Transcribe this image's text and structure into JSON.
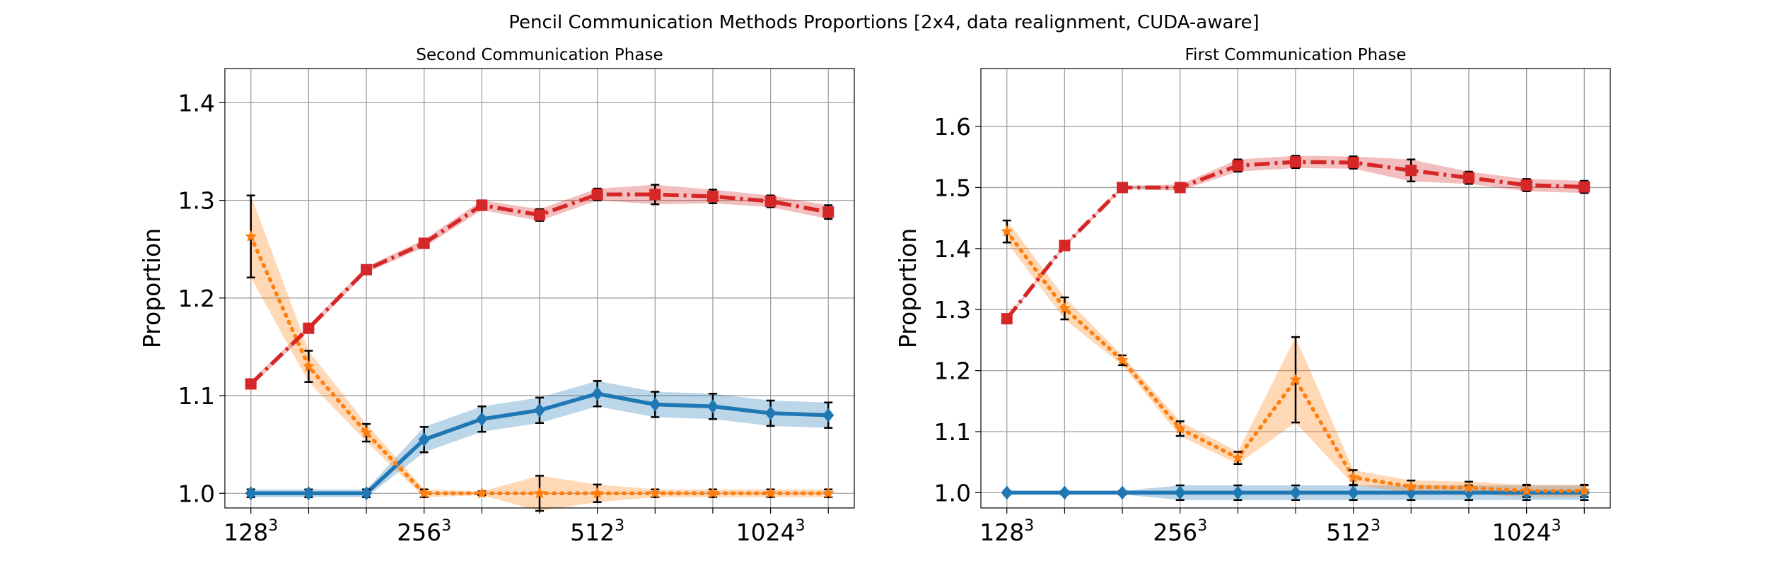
{
  "figure": {
    "suptitle": "Pencil Communication Methods Proportions [2x4, data realignment, CUDA-aware]"
  },
  "chart_data": [
    {
      "type": "line",
      "title": "Second Communication Phase",
      "xlabel": "",
      "ylabel": "Proportion",
      "ylim": [
        0.985,
        1.435
      ],
      "yticks": [
        1.0,
        1.1,
        1.2,
        1.3,
        1.4
      ],
      "xlim": [
        0.55,
        11.45
      ],
      "xtick_positions": [
        1,
        2,
        3,
        4,
        5,
        6,
        7,
        8,
        9,
        10,
        11
      ],
      "xtick_labels": [
        {
          "pos": 1,
          "base": "128",
          "exp": "3"
        },
        {
          "pos": 4,
          "base": "256",
          "exp": "3"
        },
        {
          "pos": 7,
          "base": "512",
          "exp": "3"
        },
        {
          "pos": 10,
          "base": "1024",
          "exp": "3"
        }
      ],
      "grid": true,
      "x": [
        1,
        2,
        3,
        4,
        5,
        6,
        7,
        8,
        9,
        10,
        11
      ],
      "series": [
        {
          "color": "#1f77b4",
          "linestyle": "solid",
          "marker": "diamond",
          "values": [
            1.0,
            1.0,
            1.0,
            1.055,
            1.076,
            1.085,
            1.102,
            1.091,
            1.089,
            1.082,
            1.08
          ],
          "errors": [
            0.004,
            0.004,
            0.004,
            0.013,
            0.013,
            0.013,
            0.013,
            0.013,
            0.013,
            0.013,
            0.013
          ]
        },
        {
          "color": "#ff7f0e",
          "linestyle": "dotted",
          "marker": "star",
          "values": [
            1.263,
            1.13,
            1.062,
            1.0,
            1.0,
            1.0,
            1.0,
            1.0,
            1.0,
            1.0,
            1.0
          ],
          "errors": [
            0.042,
            0.016,
            0.009,
            0.004,
            0.002,
            0.018,
            0.009,
            0.004,
            0.004,
            0.004,
            0.004
          ]
        },
        {
          "color": "#d62728",
          "linestyle": "dashdot",
          "marker": "square",
          "values": [
            1.112,
            1.169,
            1.229,
            1.256,
            1.295,
            1.285,
            1.306,
            1.306,
            1.304,
            1.299,
            1.288
          ],
          "errors": [
            0.003,
            0.003,
            0.003,
            0.004,
            0.005,
            0.006,
            0.006,
            0.01,
            0.007,
            0.006,
            0.007
          ]
        }
      ]
    },
    {
      "type": "line",
      "title": "First Communication Phase",
      "xlabel": "",
      "ylabel": "Proportion",
      "ylim": [
        0.975,
        1.695
      ],
      "yticks": [
        1.0,
        1.1,
        1.2,
        1.3,
        1.4,
        1.5,
        1.6
      ],
      "xlim": [
        0.55,
        11.45
      ],
      "xtick_positions": [
        1,
        2,
        3,
        4,
        5,
        6,
        7,
        8,
        9,
        10,
        11
      ],
      "xtick_labels": [
        {
          "pos": 1,
          "base": "128",
          "exp": "3"
        },
        {
          "pos": 4,
          "base": "256",
          "exp": "3"
        },
        {
          "pos": 7,
          "base": "512",
          "exp": "3"
        },
        {
          "pos": 10,
          "base": "1024",
          "exp": "3"
        }
      ],
      "grid": true,
      "x": [
        1,
        2,
        3,
        4,
        5,
        6,
        7,
        8,
        9,
        10,
        11
      ],
      "series": [
        {
          "color": "#1f77b4",
          "linestyle": "solid",
          "marker": "diamond",
          "values": [
            1.0,
            1.0,
            1.0,
            1.0,
            1.0,
            1.0,
            1.0,
            1.0,
            1.0,
            1.0,
            1.0
          ],
          "errors": [
            0.003,
            0.003,
            0.003,
            0.012,
            0.012,
            0.012,
            0.012,
            0.012,
            0.012,
            0.012,
            0.012
          ]
        },
        {
          "color": "#ff7f0e",
          "linestyle": "dotted",
          "marker": "star",
          "values": [
            1.428,
            1.302,
            1.217,
            1.105,
            1.057,
            1.185,
            1.025,
            1.01,
            1.008,
            1.003,
            1.003
          ],
          "errors": [
            0.018,
            0.018,
            0.008,
            0.012,
            0.01,
            0.07,
            0.012,
            0.01,
            0.01,
            0.01,
            0.01
          ]
        },
        {
          "color": "#d62728",
          "linestyle": "dashdot",
          "marker": "square",
          "values": [
            1.285,
            1.405,
            1.5,
            1.5,
            1.536,
            1.542,
            1.541,
            1.528,
            1.516,
            1.504,
            1.501
          ],
          "errors": [
            0.003,
            0.003,
            0.003,
            0.005,
            0.01,
            0.01,
            0.01,
            0.018,
            0.01,
            0.01,
            0.01
          ]
        }
      ]
    }
  ]
}
